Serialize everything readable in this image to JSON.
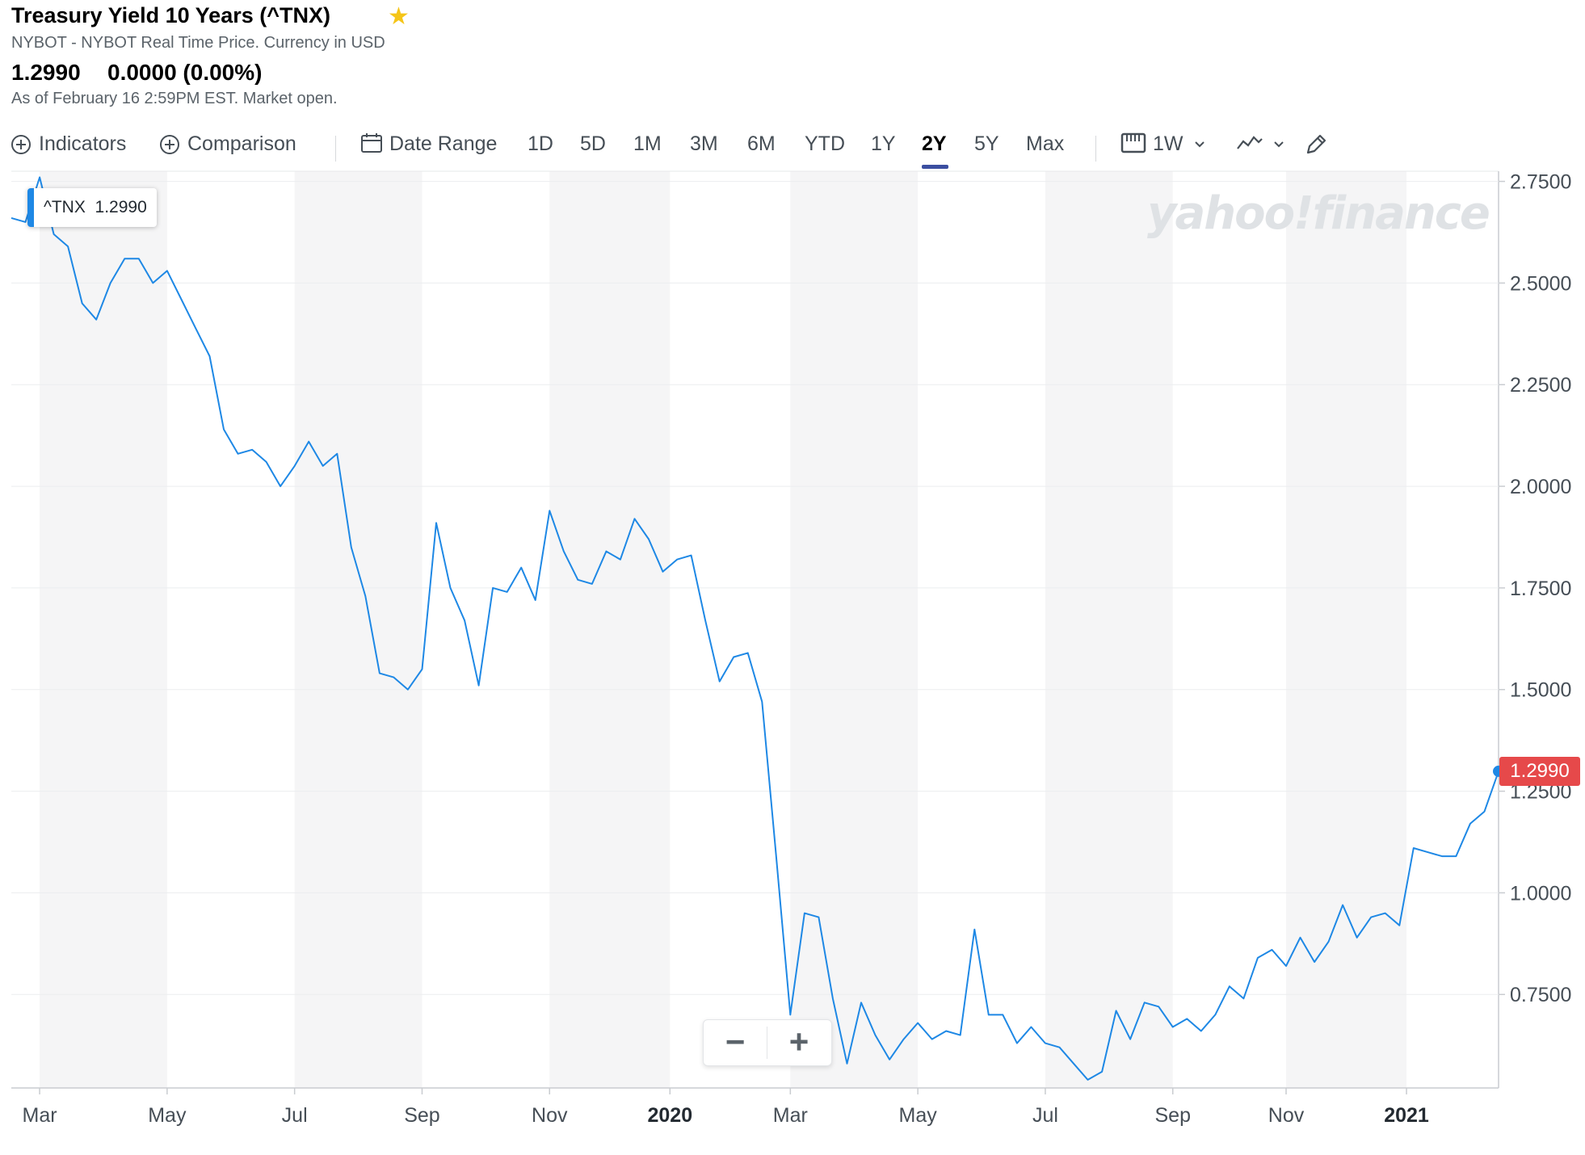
{
  "header": {
    "title": "Treasury Yield 10 Years (^TNX)",
    "subtitle": "NYBOT - NYBOT Real Time Price. Currency in USD",
    "price": "1.2990",
    "change": "0.0000 (0.00%)",
    "as_of": "As of February 16 2:59PM EST. Market open.",
    "favorite_icon": "star-icon"
  },
  "toolbar": {
    "indicators_label": "Indicators",
    "comparison_label": "Comparison",
    "date_range_label": "Date Range",
    "ranges": [
      "1D",
      "5D",
      "1M",
      "3M",
      "6M",
      "YTD",
      "1Y",
      "2Y",
      "5Y",
      "Max"
    ],
    "active_range": "2Y",
    "interval_label": "1W",
    "chart_type_icon": "line-chart-icon",
    "draw_icon": "pencil-icon"
  },
  "tooltip": {
    "symbol": "^TNX",
    "value": "1.2990"
  },
  "price_flag": "1.2990",
  "watermark": "yahoo!finance",
  "zoom": {
    "minus": "−",
    "plus": "+"
  },
  "colors": {
    "line": "#1e88e5",
    "flag": "#e6494a",
    "active_tab": "#3b4ea0"
  },
  "chart_data": {
    "type": "line",
    "title": "",
    "xlabel": "",
    "ylabel": "",
    "ylim": [
      0.52,
      2.775
    ],
    "yticks": [
      "2.7500",
      "2.5000",
      "2.2500",
      "2.0000",
      "1.7500",
      "1.5000",
      "1.2500",
      "1.0000",
      "0.7500"
    ],
    "x_tick_labels": [
      {
        "label": "Mar",
        "week": 2
      },
      {
        "label": "May",
        "week": 11
      },
      {
        "label": "Jul",
        "week": 20
      },
      {
        "label": "Sep",
        "week": 29
      },
      {
        "label": "Nov",
        "week": 38
      },
      {
        "label": "2020",
        "week": 46.5
      },
      {
        "label": "Mar",
        "week": 55
      },
      {
        "label": "May",
        "week": 64
      },
      {
        "label": "Jul",
        "week": 73
      },
      {
        "label": "Sep",
        "week": 82
      },
      {
        "label": "Nov",
        "week": 90
      },
      {
        "label": "2021",
        "week": 98.5
      }
    ],
    "bands": [
      [
        2,
        11
      ],
      [
        20,
        29
      ],
      [
        38,
        46.5
      ],
      [
        55,
        64
      ],
      [
        73,
        82
      ],
      [
        90,
        98.5
      ]
    ],
    "series": [
      {
        "values": [
          2.66,
          2.65,
          2.76,
          2.62,
          2.59,
          2.45,
          2.41,
          2.5,
          2.56,
          2.56,
          2.5,
          2.53,
          2.46,
          2.39,
          2.32,
          2.14,
          2.08,
          2.09,
          2.06,
          2.0,
          2.05,
          2.11,
          2.05,
          2.08,
          1.85,
          1.73,
          1.54,
          1.53,
          1.5,
          1.55,
          1.91,
          1.75,
          1.67,
          1.51,
          1.75,
          1.74,
          1.8,
          1.72,
          1.94,
          1.84,
          1.77,
          1.76,
          1.84,
          1.82,
          1.92,
          1.87,
          1.79,
          1.82,
          1.83,
          1.67,
          1.52,
          1.58,
          1.59,
          1.47,
          1.09,
          0.7,
          0.95,
          0.94,
          0.74,
          0.58,
          0.73,
          0.65,
          0.59,
          0.64,
          0.68,
          0.64,
          0.66,
          0.65,
          0.91,
          0.7,
          0.7,
          0.63,
          0.67,
          0.63,
          0.62,
          0.58,
          0.54,
          0.56,
          0.71,
          0.64,
          0.73,
          0.72,
          0.67,
          0.69,
          0.66,
          0.7,
          0.77,
          0.74,
          0.84,
          0.86,
          0.82,
          0.89,
          0.83,
          0.88,
          0.97,
          0.89,
          0.94,
          0.95,
          0.92,
          1.11,
          1.1,
          1.09,
          1.09,
          1.17,
          1.2,
          1.299
        ]
      }
    ]
  }
}
